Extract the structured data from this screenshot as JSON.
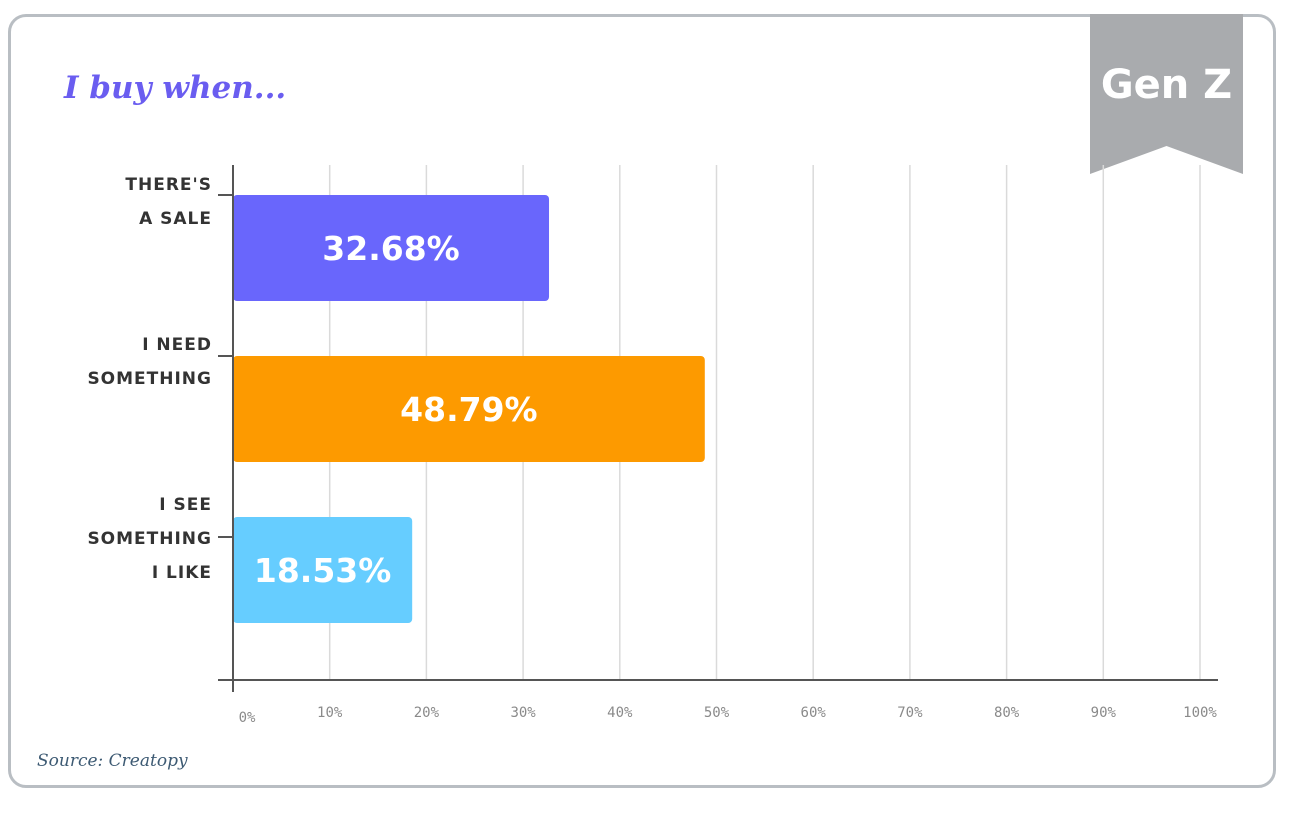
{
  "badge": "Gen Z",
  "source": "Source: Creatopy",
  "colors": {
    "title": "#6a5df0",
    "badge_bg": "#a9abae",
    "grid": "#dadada",
    "axis": "#555555"
  },
  "chart_data": {
    "type": "bar",
    "orientation": "horizontal",
    "title": "I buy when...",
    "categories": [
      [
        "THERE'S",
        "A SALE"
      ],
      [
        "I NEED",
        "SOMETHING"
      ],
      [
        "I SEE",
        "SOMETHING",
        "I LIKE"
      ]
    ],
    "values": [
      32.68,
      48.79,
      18.53
    ],
    "value_labels": [
      "32.68%",
      "48.79%",
      "18.53%"
    ],
    "colors": [
      "#6966fc",
      "#fd9a00",
      "#66cdff"
    ],
    "xlim": [
      0,
      100
    ],
    "xticks": [
      0,
      10,
      20,
      30,
      40,
      50,
      60,
      70,
      80,
      90,
      100
    ],
    "xtick_labels": [
      "0%",
      "10%",
      "20%",
      "30%",
      "40%",
      "50%",
      "60%",
      "70%",
      "80%",
      "90%",
      "100%"
    ],
    "grid": true,
    "legend": "none"
  }
}
